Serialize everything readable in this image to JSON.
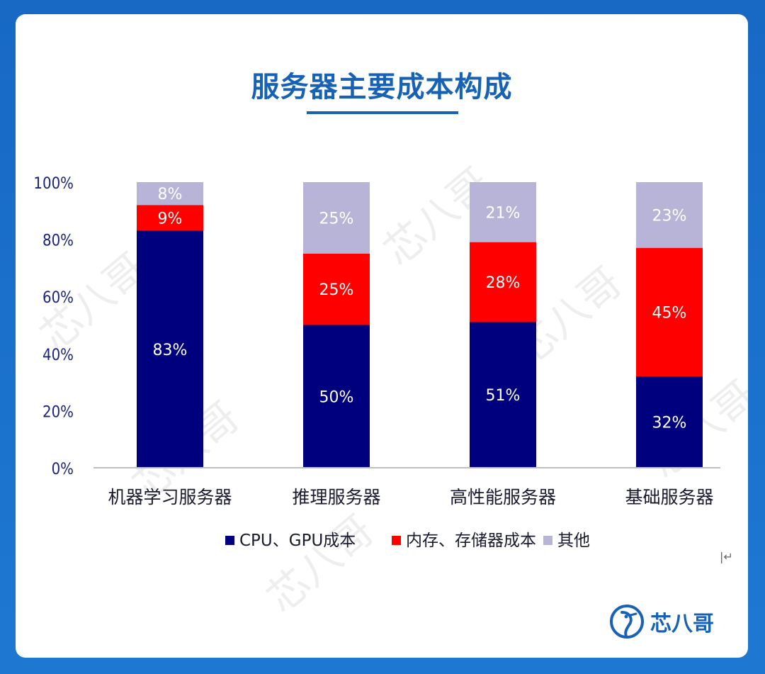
{
  "page": {
    "title": "服务器主要成本构成",
    "brand_name": "芯八哥",
    "watermark_text": "芯八哥"
  },
  "colors": {
    "background": "#1769c4",
    "title": "#1762b4",
    "cpu_gpu": "#00007f",
    "memory_storage": "#ff0000",
    "other": "#b7b4d8",
    "axis_text": "#1a237e"
  },
  "chart_data": {
    "type": "bar",
    "stacked": true,
    "title": "服务器主要成本构成",
    "categories": [
      "机器学习服务器",
      "推理服务器",
      "高性能服务器",
      "基础服务器"
    ],
    "series": [
      {
        "name": "CPU、GPU成本",
        "values": [
          83,
          50,
          51,
          32
        ],
        "labels": [
          "83%",
          "50%",
          "51%",
          "32%"
        ],
        "color": "#00007f"
      },
      {
        "name": "内存、存储器成本",
        "values": [
          9,
          25,
          28,
          45
        ],
        "labels": [
          "9%",
          "25%",
          "28%",
          "45%"
        ],
        "color": "#ff0000"
      },
      {
        "name": "其他",
        "values": [
          8,
          25,
          21,
          23
        ],
        "labels": [
          "8%",
          "25%",
          "21%",
          "23%"
        ],
        "color": "#b7b4d8"
      }
    ],
    "ylim": [
      0,
      100
    ],
    "yticks": [
      "0%",
      "20%",
      "40%",
      "60%",
      "80%",
      "100%"
    ],
    "xlabel": "",
    "ylabel": "",
    "grid": false,
    "legend_position": "bottom"
  }
}
